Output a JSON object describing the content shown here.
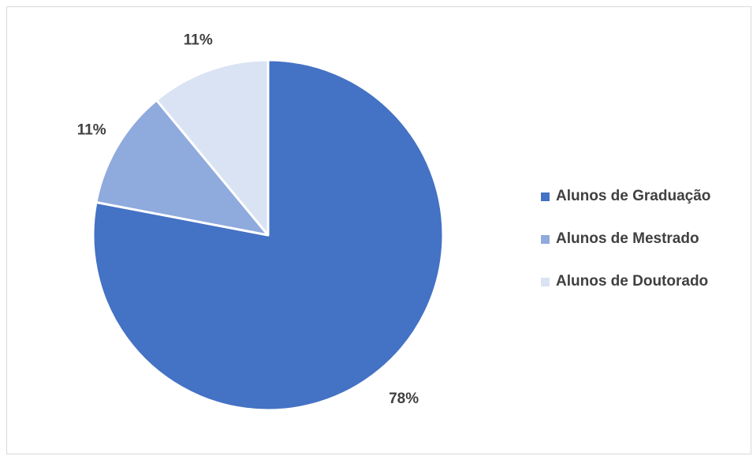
{
  "chart_data": {
    "type": "pie",
    "categories": [
      "Alunos de Graduação",
      "Alunos de Mestrado",
      "Alunos de Doutorado"
    ],
    "values": [
      78,
      11,
      11
    ],
    "data_labels": [
      "78%",
      "11%",
      "11%"
    ],
    "colors": [
      "#4472c4",
      "#8faadc",
      "#dae3f3"
    ],
    "legend_position": "right",
    "start_angle": "12 o'clock, clockwise"
  }
}
